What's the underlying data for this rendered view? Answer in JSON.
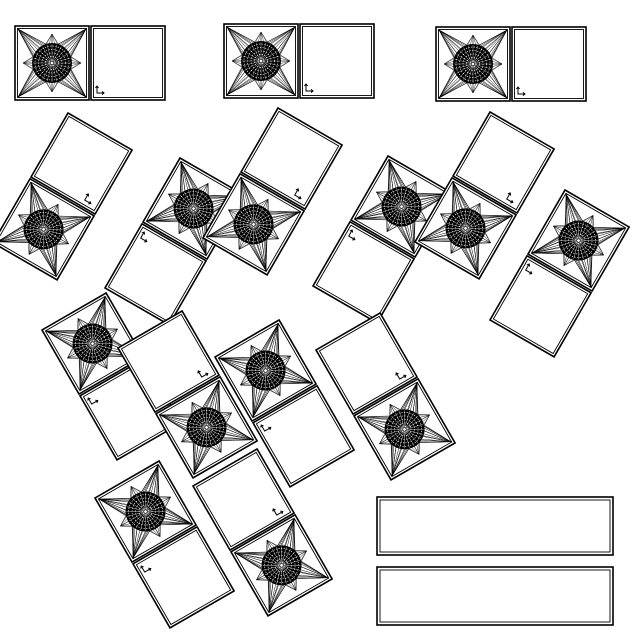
{
  "icons": {
    "star_tile": "star-burst-icon",
    "blank_tile": "blank-card",
    "corner_marker": "corner-arrow-icon",
    "answer_box": "answer-box"
  },
  "colors": {
    "ink": "#000000",
    "paper": "#ffffff"
  },
  "top_row_pairs": [
    {
      "id": "pair-1",
      "orientation": "upright"
    },
    {
      "id": "pair-2",
      "orientation": "upright"
    },
    {
      "id": "pair-3",
      "orientation": "upright"
    }
  ],
  "middle_row_pairs": [
    {
      "id": "pair-4",
      "star_position": "bottom"
    },
    {
      "id": "pair-5",
      "star_position": "top"
    },
    {
      "id": "pair-6",
      "star_position": "bottom"
    },
    {
      "id": "pair-7",
      "star_position": "top"
    },
    {
      "id": "pair-8",
      "star_position": "bottom"
    },
    {
      "id": "pair-9",
      "star_position": "top"
    }
  ],
  "bottom_row_pairs": [
    {
      "id": "pair-10",
      "star_position": "top"
    },
    {
      "id": "pair-11",
      "star_position": "bottom"
    },
    {
      "id": "pair-12",
      "star_position": "top"
    },
    {
      "id": "pair-13",
      "star_position": "bottom"
    },
    {
      "id": "pair-14",
      "star_position": "top"
    },
    {
      "id": "pair-15",
      "star_position": "bottom"
    }
  ],
  "answer_boxes": [
    {
      "id": "answer-box-1",
      "value": ""
    },
    {
      "id": "answer-box-2",
      "value": ""
    }
  ]
}
